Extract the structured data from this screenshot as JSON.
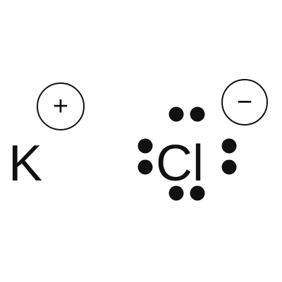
{
  "diagram": {
    "cation": {
      "symbol": "K",
      "charge": "+"
    },
    "anion": {
      "symbol": "Cl",
      "charge": "−",
      "valence_electrons": 8,
      "electron_pairs": [
        "top",
        "left",
        "right",
        "bottom"
      ]
    },
    "colors": {
      "ink": "#111111",
      "background": "#ffffff"
    }
  }
}
